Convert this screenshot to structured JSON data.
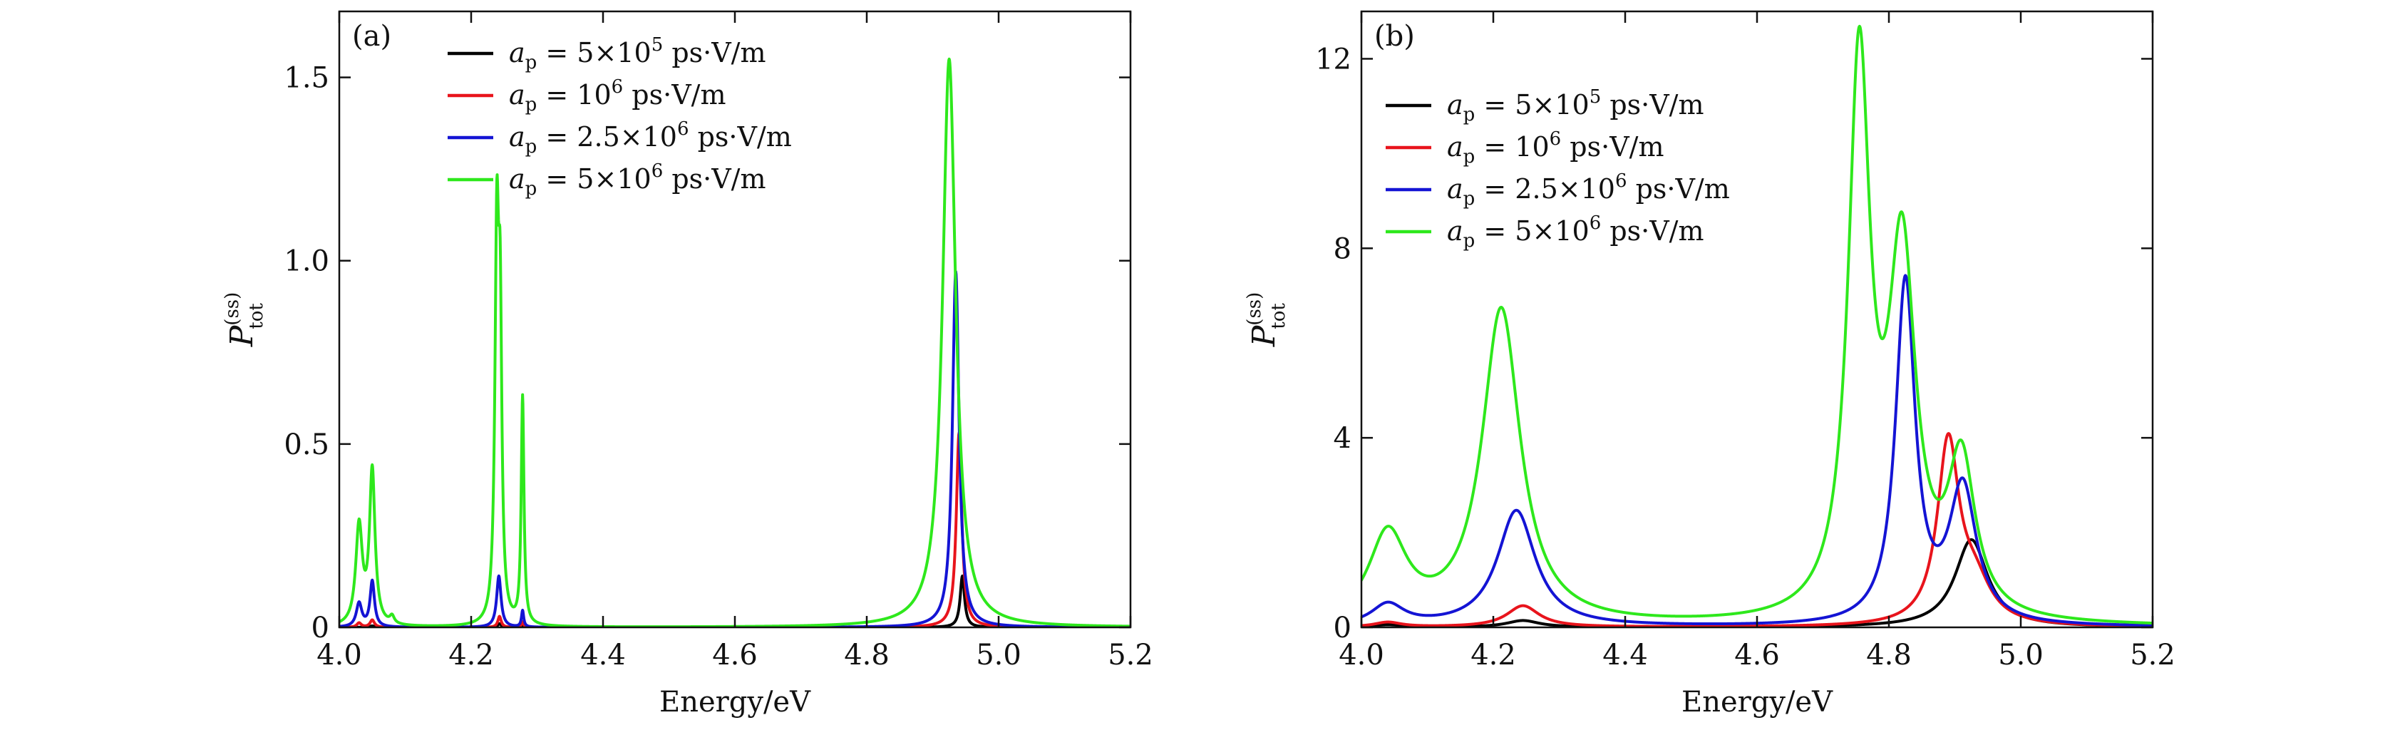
{
  "chart_data": [
    {
      "type": "line",
      "panel_label": "(a)",
      "xlabel": "Energy/eV",
      "ylabel_main": "P",
      "ylabel_sup": "(ss)",
      "ylabel_sub": "tot",
      "xlim": [
        4.0,
        5.2
      ],
      "ylim": [
        0,
        1.68
      ],
      "xticks": [
        4.0,
        4.2,
        4.4,
        4.6,
        4.8,
        5.0,
        5.2
      ],
      "xtick_labels": [
        "4.0",
        "4.2",
        "4.4",
        "4.6",
        "4.8",
        "5.0",
        "5.2"
      ],
      "yticks": [
        0,
        0.5,
        1.0,
        1.5
      ],
      "ytick_labels": [
        "0",
        "0.5",
        "1.0",
        "1.5"
      ],
      "legend_position": "top-left",
      "series": [
        {
          "name": "a_p = 5×10^5 ps·V/m",
          "legend": {
            "sym": "a",
            "sub": "p",
            "pre": " = 5×10",
            "sup": "5",
            "post": " ps·V/m"
          },
          "color": "#000000",
          "peaks": [
            {
              "center": 4.05,
              "height": 0.004,
              "width": 0.004
            },
            {
              "center": 4.243,
              "height": 0.01,
              "width": 0.003
            },
            {
              "center": 4.278,
              "height": 0.006,
              "width": 0.002
            },
            {
              "center": 4.945,
              "height": 0.14,
              "width": 0.004
            }
          ]
        },
        {
          "name": "a_p = 10^6 ps·V/m",
          "legend": {
            "sym": "a",
            "sub": "p",
            "pre": " = 10",
            "sup": "6",
            "post": " ps·V/m"
          },
          "color": "#e8141c",
          "peaks": [
            {
              "center": 4.03,
              "height": 0.012,
              "width": 0.004
            },
            {
              "center": 4.05,
              "height": 0.02,
              "width": 0.004
            },
            {
              "center": 4.243,
              "height": 0.03,
              "width": 0.003
            },
            {
              "center": 4.278,
              "height": 0.015,
              "width": 0.002
            },
            {
              "center": 4.94,
              "height": 0.53,
              "width": 0.005
            }
          ]
        },
        {
          "name": "a_p = 2.5×10^6 ps·V/m",
          "legend": {
            "sym": "a",
            "sub": "p",
            "pre": " = 2.5×10",
            "sup": "6",
            "post": " ps·V/m"
          },
          "color": "#1414d4",
          "peaks": [
            {
              "center": 4.03,
              "height": 0.065,
              "width": 0.005
            },
            {
              "center": 4.05,
              "height": 0.125,
              "width": 0.004
            },
            {
              "center": 4.242,
              "height": 0.14,
              "width": 0.004
            },
            {
              "center": 4.278,
              "height": 0.045,
              "width": 0.002
            },
            {
              "center": 4.935,
              "height": 0.97,
              "width": 0.006
            }
          ]
        },
        {
          "name": "a_p = 5×10^6 ps·V/m",
          "legend": {
            "sym": "a",
            "sub": "p",
            "pre": " = 5×10",
            "sup": "6",
            "post": " ps·V/m"
          },
          "color": "#2ee81c",
          "peaks": [
            {
              "center": 4.03,
              "height": 0.27,
              "width": 0.006
            },
            {
              "center": 4.05,
              "height": 0.42,
              "width": 0.005
            },
            {
              "center": 4.08,
              "height": 0.02,
              "width": 0.004
            },
            {
              "center": 4.239,
              "height": 1.03,
              "width": 0.0035
            },
            {
              "center": 4.244,
              "height": 0.72,
              "width": 0.003
            },
            {
              "center": 4.278,
              "height": 0.62,
              "width": 0.0025
            },
            {
              "center": 4.925,
              "height": 1.55,
              "width": 0.012
            }
          ]
        }
      ]
    },
    {
      "type": "line",
      "panel_label": "(b)",
      "xlabel": "Energy/eV",
      "ylabel_main": "P",
      "ylabel_sup": "(ss)",
      "ylabel_sub": "tot",
      "xlim": [
        4.0,
        5.2
      ],
      "ylim": [
        0,
        13
      ],
      "xticks": [
        4.0,
        4.2,
        4.4,
        4.6,
        4.8,
        5.0,
        5.2
      ],
      "xtick_labels": [
        "4.0",
        "4.2",
        "4.4",
        "4.6",
        "4.8",
        "5.0",
        "5.2"
      ],
      "yticks": [
        0,
        4,
        8,
        12
      ],
      "ytick_labels": [
        "0",
        "4",
        "8",
        "12"
      ],
      "legend_position": "top-left",
      "series": [
        {
          "name": "a_p = 5×10^5 ps·V/m",
          "legend": {
            "sym": "a",
            "sub": "p",
            "pre": " = 5×10",
            "sup": "5",
            "post": " ps·V/m"
          },
          "color": "#000000",
          "peaks": [
            {
              "center": 4.04,
              "height": 0.05,
              "width": 0.025
            },
            {
              "center": 4.245,
              "height": 0.14,
              "width": 0.03
            },
            {
              "center": 4.925,
              "height": 1.85,
              "width": 0.03
            }
          ]
        },
        {
          "name": "a_p = 10^6 ps·V/m",
          "legend": {
            "sym": "a",
            "sub": "p",
            "pre": " = 10",
            "sup": "6",
            "post": " ps·V/m"
          },
          "color": "#e8141c",
          "peaks": [
            {
              "center": 4.04,
              "height": 0.1,
              "width": 0.025
            },
            {
              "center": 4.245,
              "height": 0.45,
              "width": 0.03
            },
            {
              "center": 4.89,
              "height": 3.8,
              "width": 0.02
            },
            {
              "center": 4.93,
              "height": 0.8,
              "width": 0.03
            }
          ]
        },
        {
          "name": "a_p = 2.5×10^6 ps·V/m",
          "legend": {
            "sym": "a",
            "sub": "p",
            "pre": " = 2.5×10",
            "sup": "6",
            "post": " ps·V/m"
          },
          "color": "#1414d4",
          "peaks": [
            {
              "center": 4.04,
              "height": 0.45,
              "width": 0.03
            },
            {
              "center": 4.235,
              "height": 2.45,
              "width": 0.035
            },
            {
              "center": 4.825,
              "height": 7.2,
              "width": 0.018
            },
            {
              "center": 4.912,
              "height": 2.85,
              "width": 0.025
            }
          ]
        },
        {
          "name": "a_p = 5×10^6 ps·V/m",
          "legend": {
            "sym": "a",
            "sub": "p",
            "pre": " = 5×10",
            "sup": "6",
            "post": " ps·V/m"
          },
          "color": "#2ee81c",
          "peaks": [
            {
              "center": 4.04,
              "height": 1.85,
              "width": 0.035
            },
            {
              "center": 4.212,
              "height": 6.65,
              "width": 0.035
            },
            {
              "center": 4.755,
              "height": 11.6,
              "width": 0.02
            },
            {
              "center": 4.82,
              "height": 7.5,
              "width": 0.025
            },
            {
              "center": 4.91,
              "height": 3.2,
              "width": 0.025
            }
          ]
        }
      ]
    }
  ]
}
